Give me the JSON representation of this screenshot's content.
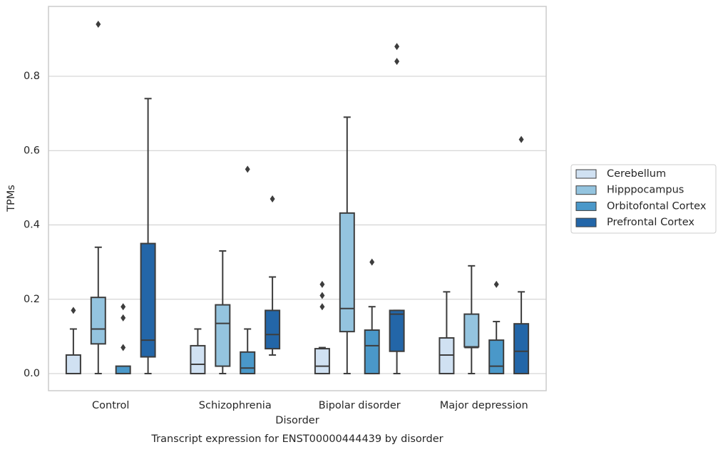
{
  "chart_data": {
    "type": "box",
    "title": "Transcript expression for ENST00000444439 by disorder",
    "x_label": "Disorder",
    "y_label": "TPMs",
    "categories": [
      "Control",
      "Schizophrenia",
      "Bipolar disorder",
      "Major depression"
    ],
    "ylim": [
      -0.046,
      0.988
    ],
    "yticks": [
      {
        "value": 0,
        "label": "0.0"
      },
      0.2,
      0.4,
      0.6,
      0.8
    ],
    "grid": true,
    "legend": "right",
    "series": [
      {
        "name": "Cerebellum",
        "color": "#d0e1f2",
        "whislo": [
          0,
          0,
          0,
          0
        ],
        "q1": [
          0,
          0,
          0,
          0
        ],
        "med": [
          0,
          0.025,
          0.02,
          0.05
        ],
        "q3": [
          0.05,
          0.075,
          0.067,
          0.096
        ],
        "whishi": [
          0.12,
          0.12,
          0.07,
          0.22
        ],
        "fliers": [
          [
            0.17
          ],
          [],
          [
            0.24,
            0.21,
            0.18
          ],
          []
        ]
      },
      {
        "name": "Hipppocampus",
        "color": "#94c4df",
        "whislo": [
          0,
          0,
          0,
          0
        ],
        "q1": [
          0.08,
          0.02,
          0.113,
          0.072
        ],
        "med": [
          0.12,
          0.135,
          0.175,
          0.07
        ],
        "q3": [
          0.205,
          0.185,
          0.432,
          0.16
        ],
        "whishi": [
          0.34,
          0.33,
          0.69,
          0.29
        ],
        "fliers": [
          [
            0.94
          ],
          [],
          [],
          []
        ]
      },
      {
        "name": "Orbitofontal Cortex",
        "color": "#4a98c9",
        "whislo": [
          0,
          0,
          0,
          0
        ],
        "q1": [
          0,
          0,
          0,
          0
        ],
        "med": [
          0,
          0.015,
          0.075,
          0.02
        ],
        "q3": [
          0.02,
          0.058,
          0.117,
          0.09
        ],
        "whishi": [
          0,
          0.12,
          0.18,
          0.14
        ],
        "fliers": [
          [
            0.18,
            0.15,
            0.07
          ],
          [
            0.55
          ],
          [
            0.3
          ],
          [
            0.24
          ]
        ]
      },
      {
        "name": "Prefrontal Cortex",
        "color": "#2366a8",
        "whislo": [
          0,
          0.05,
          0,
          0
        ],
        "q1": [
          0.045,
          0.067,
          0.06,
          0
        ],
        "med": [
          0.09,
          0.105,
          0.16,
          0.06
        ],
        "q3": [
          0.35,
          0.17,
          0.17,
          0.134
        ],
        "whishi": [
          0.74,
          0.26,
          0.17,
          0.22
        ],
        "fliers": [
          [],
          [
            0.47
          ],
          [
            0.88,
            0.84
          ],
          [
            0.63
          ]
        ]
      }
    ]
  }
}
